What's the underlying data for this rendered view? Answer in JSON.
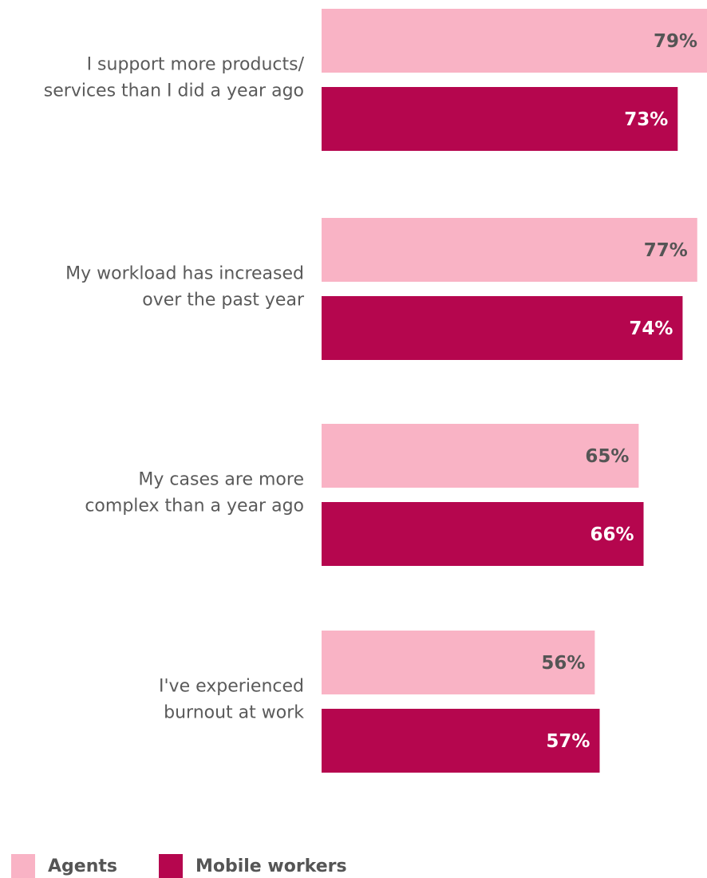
{
  "chart_data": {
    "type": "bar",
    "orientation": "horizontal",
    "categories": [
      [
        "I support more products/",
        "services than I did a year ago"
      ],
      [
        "My workload has increased",
        "over the past year"
      ],
      [
        "My cases are more",
        "complex than a year ago"
      ],
      [
        "I've experienced",
        "burnout at work"
      ]
    ],
    "series": [
      {
        "name": "Agents",
        "color": "#f9b3c5",
        "label_color": "#555555",
        "values": [
          79,
          77,
          65,
          56
        ],
        "labels": [
          "79%",
          "77%",
          "65%",
          "56%"
        ]
      },
      {
        "name": "Mobile workers",
        "color": "#b5064e",
        "label_color": "#ffffff",
        "values": [
          73,
          74,
          66,
          57
        ],
        "labels": [
          "73%",
          "74%",
          "66%",
          "57%"
        ]
      }
    ],
    "title": "",
    "xlabel": "",
    "ylabel": "",
    "legend_position": "bottom-left",
    "grid": false
  }
}
